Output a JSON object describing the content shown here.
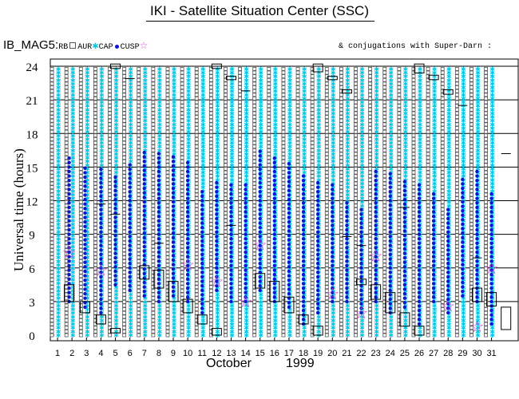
{
  "title": "IKI - Satellite Situation Center (SSC)",
  "legend": {
    "main": "IB_MAG5:",
    "items": [
      {
        "label": "RB",
        "marker": "square",
        "color": "#555555"
      },
      {
        "label": "AUR",
        "marker": "star",
        "color": "#00c8e6"
      },
      {
        "label": "CAP",
        "marker": "dot",
        "color": "#0a14d2"
      },
      {
        "label": "CUSP",
        "marker": "hollow-star",
        "color": "#d040d0"
      }
    ],
    "note": "& conjugations with Super-Darn :"
  },
  "colors": {
    "rb": "#555555",
    "aur": "#00c8e6",
    "cap": "#0a14d2",
    "cusp": "#d040d0",
    "box": "#000000"
  },
  "chart_data": {
    "type": "scatter",
    "title": "IKI - Satellite Situation Center (SSC)",
    "xlabel": "October",
    "xlabel_year": "1999",
    "ylabel": "Universal time (hours)",
    "xlim": [
      1,
      31
    ],
    "ylim": [
      0,
      24
    ],
    "yticks": [
      0,
      3,
      6,
      9,
      12,
      15,
      18,
      21,
      24
    ],
    "xticks": [
      1,
      2,
      3,
      4,
      5,
      6,
      7,
      8,
      9,
      10,
      11,
      12,
      13,
      14,
      15,
      16,
      17,
      18,
      19,
      20,
      21,
      22,
      23,
      24,
      25,
      26,
      27,
      28,
      29,
      30,
      31
    ],
    "grid": "horizontal",
    "series_names": [
      "RB",
      "AUR",
      "CAP",
      "CUSP"
    ],
    "cap_ranges": [
      [
        1.8,
        3.0,
        16.0
      ],
      [
        2.9,
        2.5,
        15.0
      ],
      [
        4.0,
        2.0,
        15.0
      ],
      [
        5.0,
        4.5,
        14.5
      ],
      [
        6.0,
        4.0,
        15.5
      ],
      [
        7.0,
        3.5,
        16.5
      ],
      [
        8.0,
        3.0,
        16.5
      ],
      [
        9.0,
        3.5,
        16.0
      ],
      [
        10.0,
        3.0,
        15.5
      ],
      [
        11.0,
        2.0,
        13.0
      ],
      [
        12.0,
        4.0,
        14.0
      ],
      [
        13.0,
        3.0,
        13.5
      ],
      [
        14.0,
        3.0,
        13.5
      ],
      [
        15.0,
        4.0,
        16.5
      ],
      [
        16.0,
        3.0,
        16.0
      ],
      [
        17.0,
        2.5,
        15.5
      ],
      [
        18.0,
        1.0,
        14.5
      ],
      [
        19.0,
        2.0,
        14.0
      ],
      [
        20.0,
        3.0,
        13.5
      ],
      [
        21.0,
        3.0,
        12.0
      ],
      [
        22.0,
        2.0,
        11.5
      ],
      [
        23.0,
        3.0,
        15.0
      ],
      [
        24.0,
        2.0,
        14.5
      ],
      [
        25.0,
        2.5,
        14.0
      ],
      [
        26.0,
        1.0,
        13.5
      ],
      [
        27.0,
        3.0,
        13.0
      ],
      [
        28.0,
        2.0,
        11.5
      ],
      [
        29.0,
        3.5,
        14.0
      ],
      [
        30.0,
        3.0,
        15.0
      ],
      [
        31.0,
        1.0,
        13.0
      ]
    ],
    "cusp_points": [
      [
        1.8,
        7.4
      ],
      [
        4.0,
        5.8
      ],
      [
        10.0,
        6.3
      ],
      [
        12.0,
        4.8
      ],
      [
        14.0,
        3.0
      ],
      [
        15.0,
        8.1
      ],
      [
        20.0,
        3.7
      ],
      [
        22.0,
        2.0
      ],
      [
        23.0,
        7.1
      ],
      [
        28.0,
        2.6
      ],
      [
        30.0,
        0.8
      ],
      [
        31.0,
        6.0
      ]
    ],
    "boxes": [
      [
        1.8,
        3.0,
        4.5
      ],
      [
        2.9,
        2.0,
        3.0
      ],
      [
        4.0,
        1.0,
        1.8
      ],
      [
        5.0,
        0.2,
        0.6
      ],
      [
        5.0,
        23.8,
        24.2
      ],
      [
        7.0,
        5.0,
        6.2
      ],
      [
        8.0,
        4.2,
        5.8
      ],
      [
        9.0,
        3.0,
        4.8
      ],
      [
        10.0,
        2.0,
        3.2
      ],
      [
        11.0,
        1.0,
        1.8
      ],
      [
        12.0,
        0.0,
        0.6
      ],
      [
        12.0,
        23.8,
        24.2
      ],
      [
        13.0,
        22.8,
        23.1
      ],
      [
        15.0,
        4.2,
        5.5
      ],
      [
        16.0,
        3.0,
        4.8
      ],
      [
        17.0,
        2.0,
        3.4
      ],
      [
        18.0,
        1.0,
        1.8
      ],
      [
        19.0,
        0.0,
        0.8
      ],
      [
        19.0,
        23.5,
        24.2
      ],
      [
        20.0,
        22.8,
        23.1
      ],
      [
        21.0,
        21.6,
        21.9
      ],
      [
        22.0,
        4.5,
        5.0
      ],
      [
        23.0,
        3.2,
        4.5
      ],
      [
        24.0,
        2.0,
        3.8
      ],
      [
        25.0,
        0.8,
        2.0
      ],
      [
        26.0,
        0.0,
        0.8
      ],
      [
        26.0,
        23.4,
        24.2
      ],
      [
        27.0,
        22.8,
        23.2
      ],
      [
        28.0,
        21.5,
        21.9
      ],
      [
        30.0,
        3.0,
        4.2
      ],
      [
        31.0,
        2.6,
        3.8
      ],
      [
        32.0,
        0.5,
        2.5
      ]
    ],
    "ticks_marks": [
      [
        4.0,
        11.7
      ],
      [
        5.0,
        10.8
      ],
      [
        6.0,
        22.9
      ],
      [
        8.0,
        8.2
      ],
      [
        13.0,
        9.8
      ],
      [
        14.0,
        21.8
      ],
      [
        21.0,
        8.8
      ],
      [
        22.0,
        8.0
      ],
      [
        25.0,
        11.4
      ],
      [
        29.0,
        20.5
      ],
      [
        30.0,
        6.9
      ],
      [
        32.0,
        16.2
      ]
    ]
  }
}
